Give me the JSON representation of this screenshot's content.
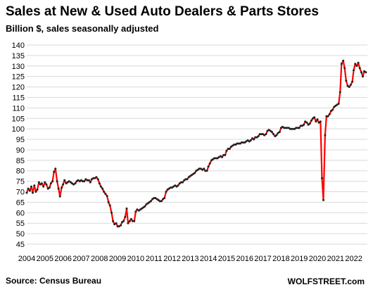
{
  "chart_data": {
    "type": "line",
    "title": "Sales at New & Used Auto Dealers & Parts Stores",
    "subtitle": "Billion $, sales seasonally adjusted",
    "xlabel": "",
    "ylabel": "",
    "ylim": [
      45,
      140
    ],
    "yticks": [
      45,
      50,
      55,
      60,
      65,
      70,
      75,
      80,
      85,
      90,
      95,
      100,
      105,
      110,
      115,
      120,
      125,
      130,
      135,
      140
    ],
    "xticks": [
      "2004",
      "2005",
      "2006",
      "2007",
      "2008",
      "2009",
      "2010",
      "2011",
      "2012",
      "2013",
      "2014",
      "2015",
      "2016",
      "2017",
      "2018",
      "2019",
      "2020",
      "2021",
      "2022"
    ],
    "xlim": [
      2004.0,
      2022.75
    ],
    "grid": "horizontal",
    "line_color": "#ff0000",
    "marker_color": "#222222",
    "series": [
      {
        "x": [
          2004.0,
          2004.08,
          2004.17,
          2004.25,
          2004.33,
          2004.42,
          2004.5,
          2004.58,
          2004.67,
          2004.75,
          2004.83,
          2004.92,
          2005.0,
          2005.08,
          2005.17,
          2005.25,
          2005.33,
          2005.42,
          2005.5,
          2005.58,
          2005.67,
          2005.75,
          2005.83,
          2005.92,
          2006.0,
          2006.08,
          2006.17,
          2006.25,
          2006.33,
          2006.42,
          2006.5,
          2006.58,
          2006.67,
          2006.75,
          2006.83,
          2006.92,
          2007.0,
          2007.08,
          2007.17,
          2007.25,
          2007.33,
          2007.42,
          2007.5,
          2007.58,
          2007.67,
          2007.75,
          2007.83,
          2007.92,
          2008.0,
          2008.08,
          2008.17,
          2008.25,
          2008.33,
          2008.42,
          2008.5,
          2008.58,
          2008.67,
          2008.75,
          2008.83,
          2008.92,
          2009.0,
          2009.08,
          2009.17,
          2009.25,
          2009.33,
          2009.42,
          2009.5,
          2009.58,
          2009.67,
          2009.75,
          2009.83,
          2009.92,
          2010.0,
          2010.08,
          2010.17,
          2010.25,
          2010.33,
          2010.42,
          2010.5,
          2010.58,
          2010.67,
          2010.75,
          2010.83,
          2010.92,
          2011.0,
          2011.08,
          2011.17,
          2011.25,
          2011.33,
          2011.42,
          2011.5,
          2011.58,
          2011.67,
          2011.75,
          2011.83,
          2011.92,
          2012.0,
          2012.08,
          2012.17,
          2012.25,
          2012.33,
          2012.42,
          2012.5,
          2012.58,
          2012.67,
          2012.75,
          2012.83,
          2012.92,
          2013.0,
          2013.08,
          2013.17,
          2013.25,
          2013.33,
          2013.42,
          2013.5,
          2013.58,
          2013.67,
          2013.75,
          2013.83,
          2013.92,
          2014.0,
          2014.08,
          2014.17,
          2014.25,
          2014.33,
          2014.42,
          2014.5,
          2014.58,
          2014.67,
          2014.75,
          2014.83,
          2014.92,
          2015.0,
          2015.08,
          2015.17,
          2015.25,
          2015.33,
          2015.42,
          2015.5,
          2015.58,
          2015.67,
          2015.75,
          2015.83,
          2015.92,
          2016.0,
          2016.08,
          2016.17,
          2016.25,
          2016.33,
          2016.42,
          2016.5,
          2016.58,
          2016.67,
          2016.75,
          2016.83,
          2016.92,
          2017.0,
          2017.08,
          2017.17,
          2017.25,
          2017.33,
          2017.42,
          2017.5,
          2017.58,
          2017.67,
          2017.75,
          2017.83,
          2017.92,
          2018.0,
          2018.08,
          2018.17,
          2018.25,
          2018.33,
          2018.42,
          2018.5,
          2018.58,
          2018.67,
          2018.75,
          2018.83,
          2018.92,
          2019.0,
          2019.08,
          2019.17,
          2019.25,
          2019.33,
          2019.42,
          2019.5,
          2019.58,
          2019.67,
          2019.75,
          2019.83,
          2019.92,
          2020.0,
          2020.08,
          2020.17,
          2020.25,
          2020.33,
          2020.42,
          2020.5,
          2020.58,
          2020.67,
          2020.75,
          2020.83,
          2020.92,
          2021.0,
          2021.08,
          2021.17,
          2021.25,
          2021.33,
          2021.42,
          2021.5,
          2021.58,
          2021.67,
          2021.75,
          2021.83,
          2021.92,
          2022.0,
          2022.08,
          2022.17,
          2022.25,
          2022.33,
          2022.42,
          2022.5,
          2022.58,
          2022.67
        ],
        "values": [
          69.5,
          71.5,
          70.5,
          72.5,
          69.5,
          73,
          70,
          71,
          74.5,
          73.5,
          74,
          72.5,
          74.5,
          73.5,
          71.5,
          72,
          74,
          75,
          79.5,
          81,
          75,
          71.5,
          67.8,
          72,
          73.5,
          75.5,
          74,
          74.5,
          75,
          74.5,
          74,
          73.5,
          74,
          75,
          75.5,
          75,
          75.5,
          75,
          75,
          76,
          75.5,
          75.5,
          74.5,
          76,
          76.5,
          76.5,
          77,
          76,
          74,
          72.5,
          71.5,
          70,
          69,
          68,
          65,
          63.5,
          60,
          56,
          54.5,
          55,
          53.5,
          53.5,
          54,
          55.5,
          56,
          58,
          62,
          55,
          56,
          57,
          56,
          56,
          60.5,
          61.5,
          61,
          61.5,
          62,
          62.5,
          63,
          64,
          64.5,
          65,
          65.5,
          66.5,
          67,
          67,
          66.5,
          66,
          65.5,
          65.5,
          66.5,
          67,
          70,
          71,
          71.5,
          72,
          72,
          72.5,
          73,
          72.5,
          73,
          74,
          74.5,
          74.5,
          75.5,
          76,
          76,
          77,
          77.5,
          78,
          78.5,
          79,
          80,
          80.5,
          81,
          81,
          80.5,
          81,
          80,
          80,
          82,
          83.5,
          85,
          85.5,
          86,
          86,
          86,
          86.5,
          87,
          86.5,
          87.5,
          87.5,
          89.5,
          90.5,
          90.5,
          91.5,
          92,
          92.5,
          92.5,
          93,
          93,
          93,
          93.5,
          93.5,
          93.5,
          94,
          94.5,
          94,
          94.5,
          95.5,
          95,
          96,
          96,
          96.5,
          97.5,
          97.5,
          97.5,
          97,
          97.5,
          99,
          99.5,
          99,
          98.5,
          97.5,
          96.5,
          97,
          98,
          98.5,
          100.5,
          101,
          100.5,
          100.5,
          100.5,
          100.5,
          100,
          100,
          100,
          100,
          100.5,
          100.5,
          100.5,
          101.5,
          101.5,
          102,
          103.5,
          103,
          102,
          102.5,
          104,
          105,
          105.5,
          103.5,
          104.5,
          103,
          103.5,
          76.5,
          66,
          97,
          106,
          106,
          107,
          108.5,
          109,
          110.5,
          111,
          111.5,
          112,
          117.5,
          131,
          132.5,
          129,
          123,
          120.5,
          120,
          121,
          122.5,
          128,
          131,
          130,
          131.5,
          129,
          127,
          125,
          127.5,
          127
        ]
      }
    ]
  },
  "source": "Source: Census Bureau",
  "brand": "WOLFSTREET.com"
}
